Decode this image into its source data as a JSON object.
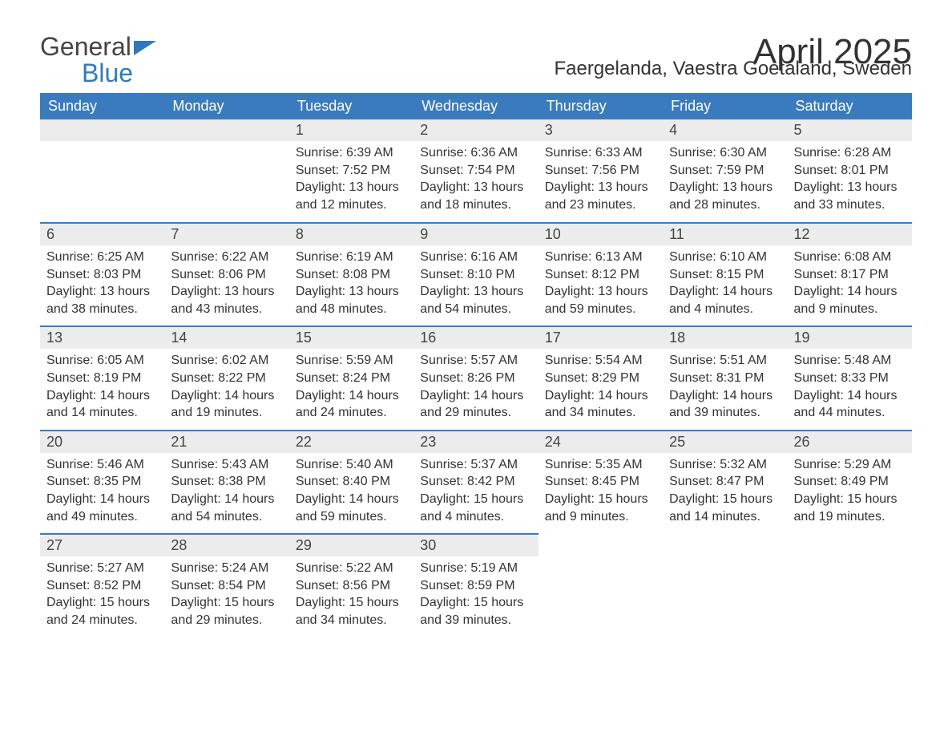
{
  "brand": {
    "part1": "General",
    "part2": "Blue"
  },
  "title": "April 2025",
  "location": "Faergelanda, Vaestra Goetaland, Sweden",
  "colors": {
    "header_bg": "#3a7bbf",
    "header_text": "#ffffff",
    "dayhead_bg": "#ececec",
    "row_border": "#3a7bbf",
    "text": "#333333",
    "brand_blue": "#2f79c2"
  },
  "weekdays": [
    "Sunday",
    "Monday",
    "Tuesday",
    "Wednesday",
    "Thursday",
    "Friday",
    "Saturday"
  ],
  "weeks": [
    [
      {
        "n": "",
        "sr": "",
        "ss": "",
        "dl": ""
      },
      {
        "n": "",
        "sr": "",
        "ss": "",
        "dl": ""
      },
      {
        "n": "1",
        "sr": "6:39 AM",
        "ss": "7:52 PM",
        "dl": "13 hours and 12 minutes."
      },
      {
        "n": "2",
        "sr": "6:36 AM",
        "ss": "7:54 PM",
        "dl": "13 hours and 18 minutes."
      },
      {
        "n": "3",
        "sr": "6:33 AM",
        "ss": "7:56 PM",
        "dl": "13 hours and 23 minutes."
      },
      {
        "n": "4",
        "sr": "6:30 AM",
        "ss": "7:59 PM",
        "dl": "13 hours and 28 minutes."
      },
      {
        "n": "5",
        "sr": "6:28 AM",
        "ss": "8:01 PM",
        "dl": "13 hours and 33 minutes."
      }
    ],
    [
      {
        "n": "6",
        "sr": "6:25 AM",
        "ss": "8:03 PM",
        "dl": "13 hours and 38 minutes."
      },
      {
        "n": "7",
        "sr": "6:22 AM",
        "ss": "8:06 PM",
        "dl": "13 hours and 43 minutes."
      },
      {
        "n": "8",
        "sr": "6:19 AM",
        "ss": "8:08 PM",
        "dl": "13 hours and 48 minutes."
      },
      {
        "n": "9",
        "sr": "6:16 AM",
        "ss": "8:10 PM",
        "dl": "13 hours and 54 minutes."
      },
      {
        "n": "10",
        "sr": "6:13 AM",
        "ss": "8:12 PM",
        "dl": "13 hours and 59 minutes."
      },
      {
        "n": "11",
        "sr": "6:10 AM",
        "ss": "8:15 PM",
        "dl": "14 hours and 4 minutes."
      },
      {
        "n": "12",
        "sr": "6:08 AM",
        "ss": "8:17 PM",
        "dl": "14 hours and 9 minutes."
      }
    ],
    [
      {
        "n": "13",
        "sr": "6:05 AM",
        "ss": "8:19 PM",
        "dl": "14 hours and 14 minutes."
      },
      {
        "n": "14",
        "sr": "6:02 AM",
        "ss": "8:22 PM",
        "dl": "14 hours and 19 minutes."
      },
      {
        "n": "15",
        "sr": "5:59 AM",
        "ss": "8:24 PM",
        "dl": "14 hours and 24 minutes."
      },
      {
        "n": "16",
        "sr": "5:57 AM",
        "ss": "8:26 PM",
        "dl": "14 hours and 29 minutes."
      },
      {
        "n": "17",
        "sr": "5:54 AM",
        "ss": "8:29 PM",
        "dl": "14 hours and 34 minutes."
      },
      {
        "n": "18",
        "sr": "5:51 AM",
        "ss": "8:31 PM",
        "dl": "14 hours and 39 minutes."
      },
      {
        "n": "19",
        "sr": "5:48 AM",
        "ss": "8:33 PM",
        "dl": "14 hours and 44 minutes."
      }
    ],
    [
      {
        "n": "20",
        "sr": "5:46 AM",
        "ss": "8:35 PM",
        "dl": "14 hours and 49 minutes."
      },
      {
        "n": "21",
        "sr": "5:43 AM",
        "ss": "8:38 PM",
        "dl": "14 hours and 54 minutes."
      },
      {
        "n": "22",
        "sr": "5:40 AM",
        "ss": "8:40 PM",
        "dl": "14 hours and 59 minutes."
      },
      {
        "n": "23",
        "sr": "5:37 AM",
        "ss": "8:42 PM",
        "dl": "15 hours and 4 minutes."
      },
      {
        "n": "24",
        "sr": "5:35 AM",
        "ss": "8:45 PM",
        "dl": "15 hours and 9 minutes."
      },
      {
        "n": "25",
        "sr": "5:32 AM",
        "ss": "8:47 PM",
        "dl": "15 hours and 14 minutes."
      },
      {
        "n": "26",
        "sr": "5:29 AM",
        "ss": "8:49 PM",
        "dl": "15 hours and 19 minutes."
      }
    ],
    [
      {
        "n": "27",
        "sr": "5:27 AM",
        "ss": "8:52 PM",
        "dl": "15 hours and 24 minutes."
      },
      {
        "n": "28",
        "sr": "5:24 AM",
        "ss": "8:54 PM",
        "dl": "15 hours and 29 minutes."
      },
      {
        "n": "29",
        "sr": "5:22 AM",
        "ss": "8:56 PM",
        "dl": "15 hours and 34 minutes."
      },
      {
        "n": "30",
        "sr": "5:19 AM",
        "ss": "8:59 PM",
        "dl": "15 hours and 39 minutes."
      },
      {
        "n": "",
        "sr": "",
        "ss": "",
        "dl": ""
      },
      {
        "n": "",
        "sr": "",
        "ss": "",
        "dl": ""
      },
      {
        "n": "",
        "sr": "",
        "ss": "",
        "dl": ""
      }
    ]
  ],
  "labels": {
    "sunrise": "Sunrise: ",
    "sunset": "Sunset: ",
    "daylight": "Daylight: "
  }
}
